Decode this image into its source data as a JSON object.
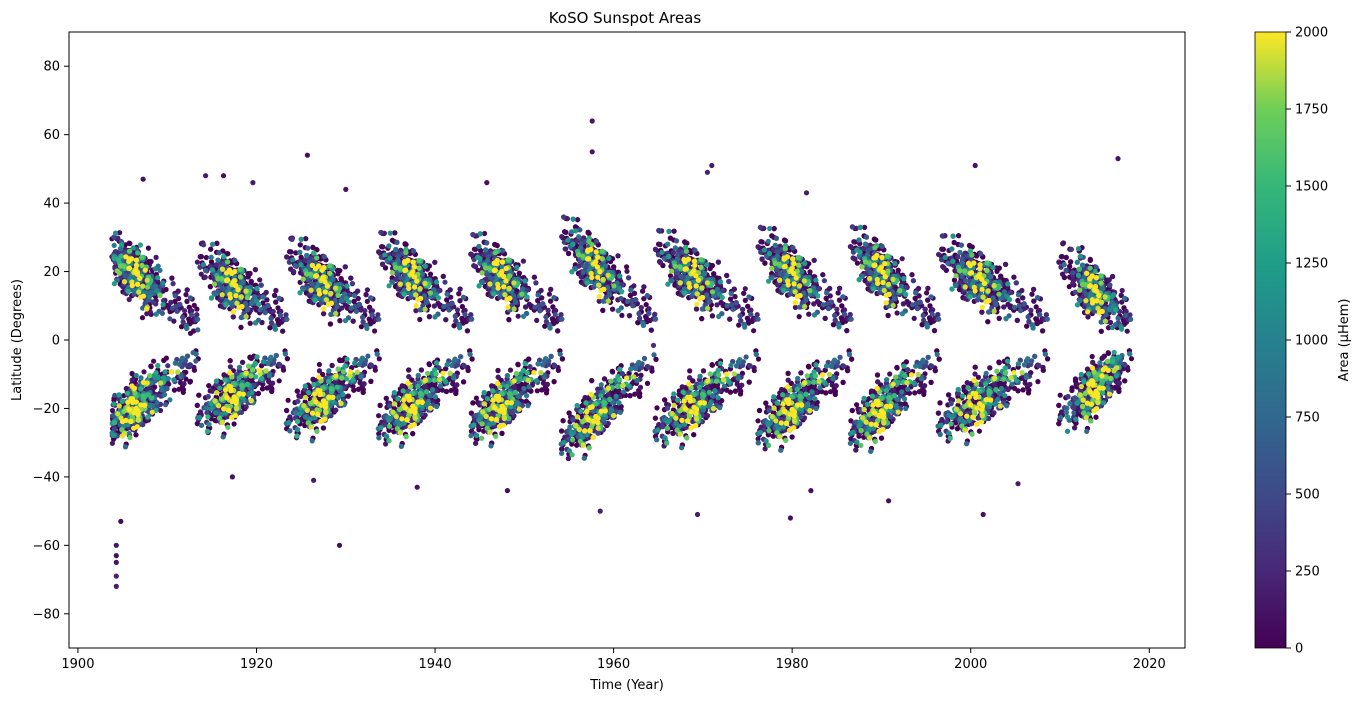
{
  "chart_data": {
    "type": "scatter",
    "title": "KoSO Sunspot Areas",
    "xlabel": "Time (Year)",
    "ylabel": "Latitude (Degrees)",
    "xlim": [
      1899,
      2024
    ],
    "ylim": [
      -90,
      90
    ],
    "x_ticks": [
      1900,
      1920,
      1940,
      1960,
      1980,
      2000,
      2020
    ],
    "y_ticks": [
      -80,
      -60,
      -40,
      -20,
      0,
      20,
      40,
      60,
      80
    ],
    "grid": false,
    "colorbar": {
      "label": "Area (μHem)",
      "range": [
        0,
        2000
      ],
      "ticks": [
        0,
        250,
        500,
        750,
        1000,
        1250,
        1500,
        1750,
        2000
      ],
      "colormap": "viridis"
    },
    "cycles": [
      {
        "start": 1904.0,
        "end": 1913.5,
        "peak_year": 1906.5,
        "max_lat": 32
      },
      {
        "start": 1913.5,
        "end": 1923.5,
        "peak_year": 1917.5,
        "max_lat": 30
      },
      {
        "start": 1923.5,
        "end": 1933.8,
        "peak_year": 1927.5,
        "max_lat": 32
      },
      {
        "start": 1933.8,
        "end": 1944.2,
        "peak_year": 1937.5,
        "max_lat": 34
      },
      {
        "start": 1944.2,
        "end": 1954.3,
        "peak_year": 1947.5,
        "max_lat": 33
      },
      {
        "start": 1954.3,
        "end": 1964.8,
        "peak_year": 1958.0,
        "max_lat": 40
      },
      {
        "start": 1964.8,
        "end": 1976.3,
        "peak_year": 1969.0,
        "max_lat": 35
      },
      {
        "start": 1976.3,
        "end": 1986.7,
        "peak_year": 1980.0,
        "max_lat": 36
      },
      {
        "start": 1986.7,
        "end": 1996.5,
        "peak_year": 1990.0,
        "max_lat": 36
      },
      {
        "start": 1996.5,
        "end": 2008.7,
        "peak_year": 2001.0,
        "max_lat": 33
      },
      {
        "start": 2010.0,
        "end": 2018.0,
        "peak_year": 2014.0,
        "max_lat": 30
      }
    ],
    "outliers": [
      {
        "x": 1904.3,
        "y": -72
      },
      {
        "x": 1904.3,
        "y": -69
      },
      {
        "x": 1904.3,
        "y": -65
      },
      {
        "x": 1904.3,
        "y": -63
      },
      {
        "x": 1904.3,
        "y": -60
      },
      {
        "x": 1904.8,
        "y": -53
      },
      {
        "x": 1929.3,
        "y": -60
      },
      {
        "x": 1957.6,
        "y": 64
      },
      {
        "x": 1957.6,
        "y": 55
      },
      {
        "x": 1925.7,
        "y": 54
      },
      {
        "x": 2016.5,
        "y": 53
      },
      {
        "x": 2000.5,
        "y": 51
      },
      {
        "x": 1971.0,
        "y": 51
      },
      {
        "x": 1970.5,
        "y": 49
      },
      {
        "x": 1914.3,
        "y": 48
      },
      {
        "x": 1916.3,
        "y": 48
      },
      {
        "x": 1907.3,
        "y": 47
      },
      {
        "x": 1919.6,
        "y": 46
      },
      {
        "x": 1945.8,
        "y": 46
      },
      {
        "x": 1930.0,
        "y": 44
      },
      {
        "x": 1981.6,
        "y": 43
      },
      {
        "x": 2001.4,
        "y": -51
      },
      {
        "x": 1979.8,
        "y": -52
      },
      {
        "x": 1969.4,
        "y": -51
      },
      {
        "x": 1958.5,
        "y": -50
      },
      {
        "x": 1948.1,
        "y": -44
      },
      {
        "x": 1938.0,
        "y": -43
      },
      {
        "x": 2005.3,
        "y": -42
      },
      {
        "x": 1926.4,
        "y": -41
      },
      {
        "x": 1917.3,
        "y": -40
      },
      {
        "x": 1990.8,
        "y": -47
      },
      {
        "x": 1982.1,
        "y": -44
      }
    ]
  }
}
